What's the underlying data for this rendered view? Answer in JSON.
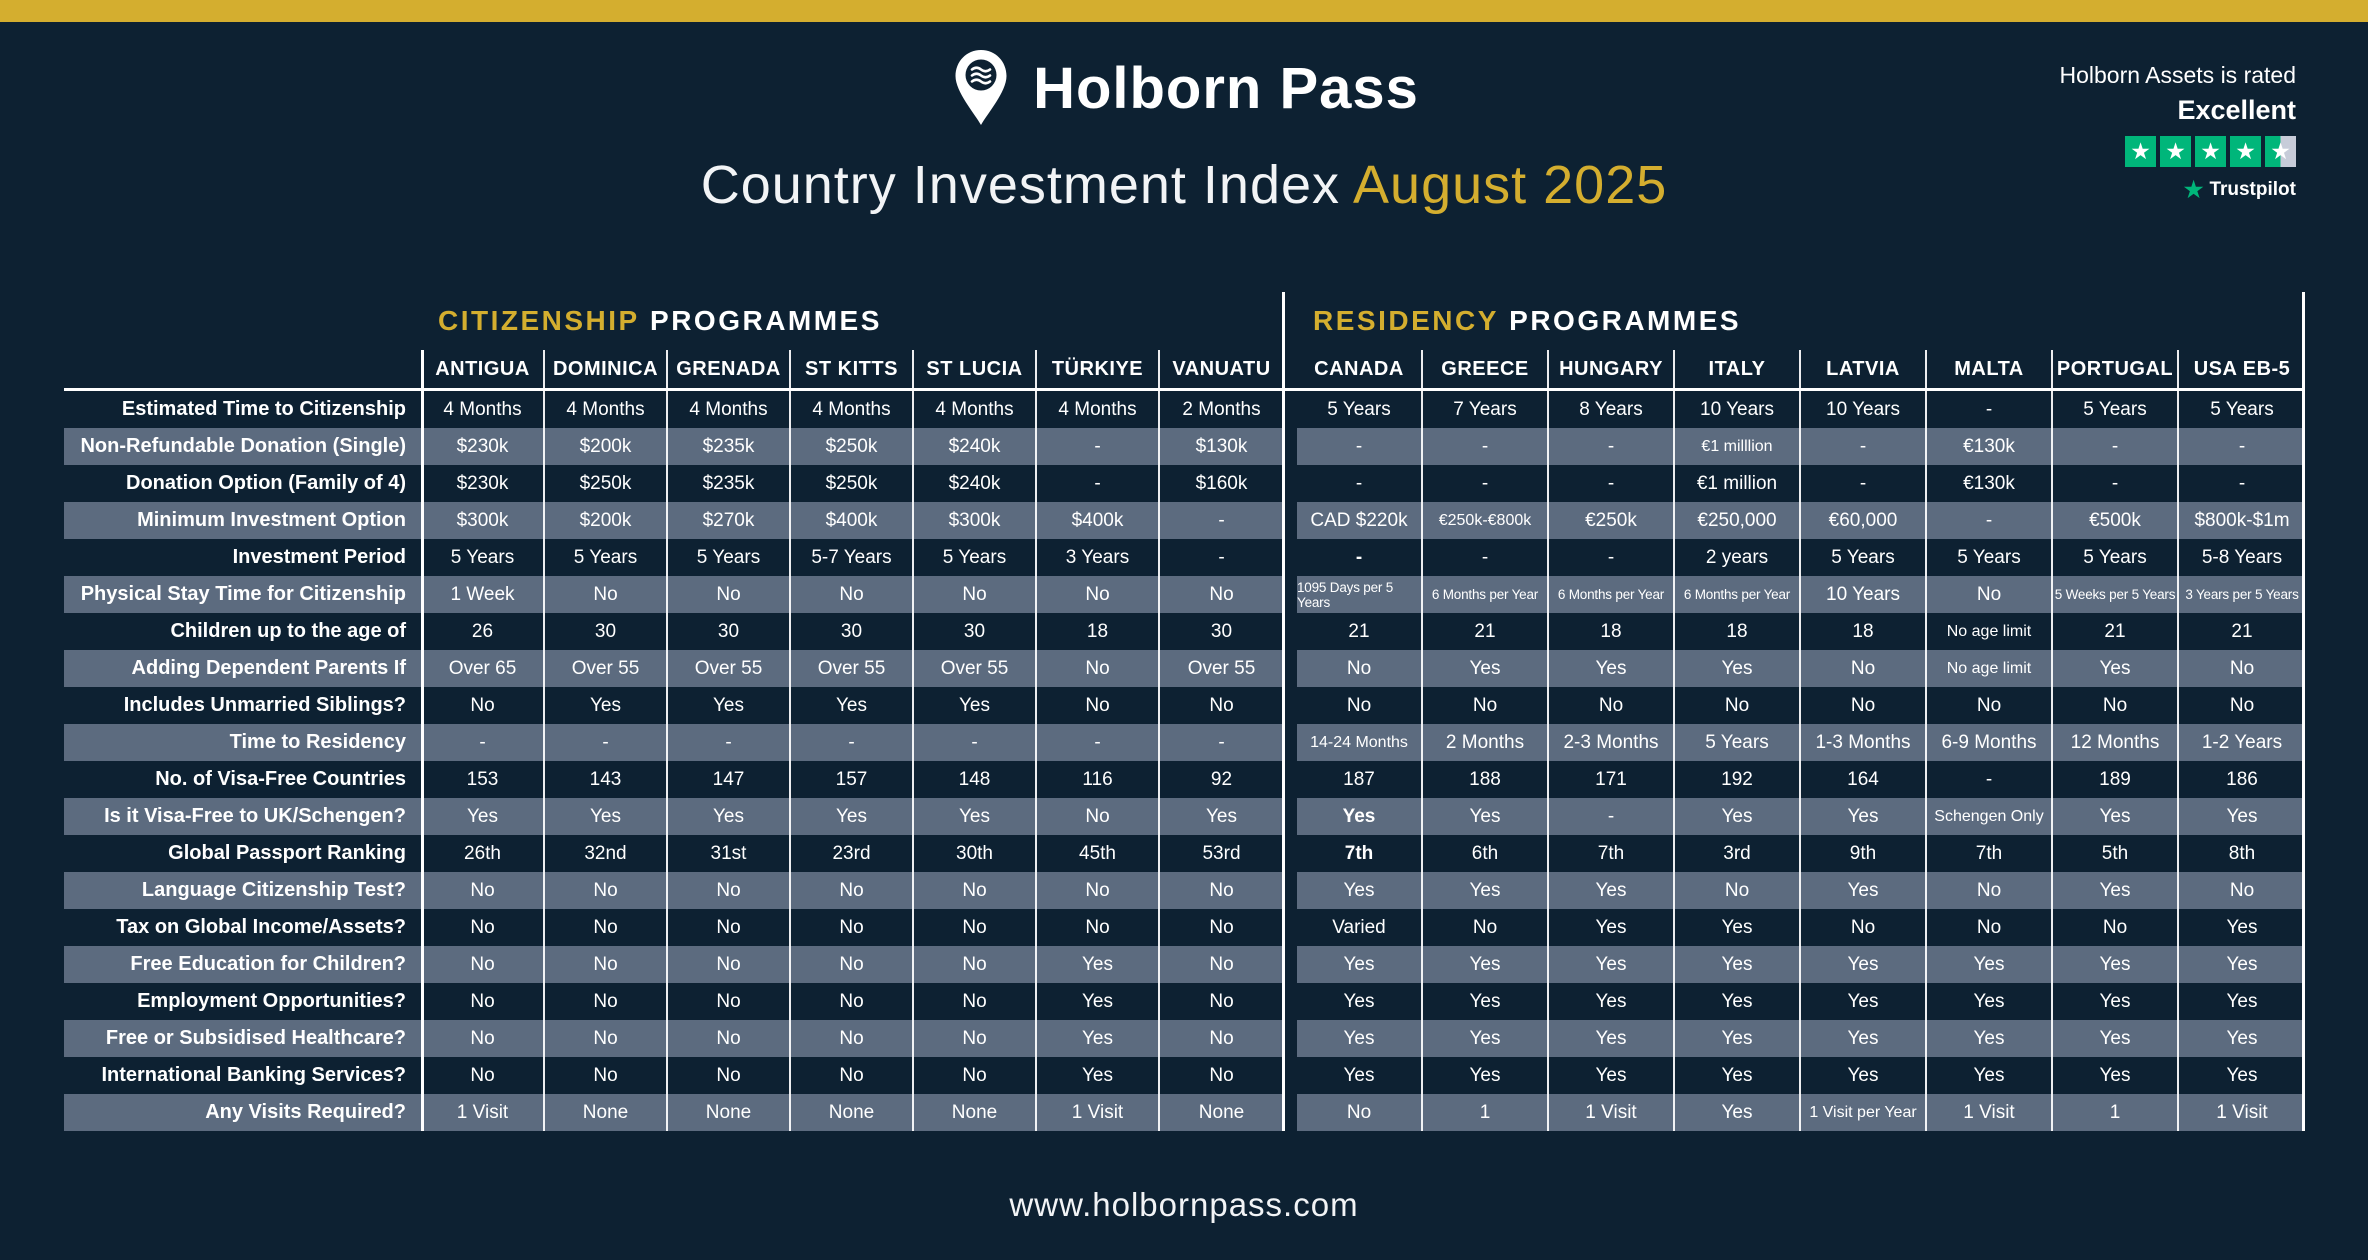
{
  "header": {
    "brand": "Holborn Pass",
    "subtitle_prefix": "Country Investment Index ",
    "subtitle_highlight": "August 2025"
  },
  "trustpilot": {
    "line1": "Holborn Assets is rated",
    "rating": "Excellent",
    "stars": 4.5,
    "brand": "Trustpilot",
    "green": "#00b67a"
  },
  "footer": {
    "url": "www.holbornpass.com"
  },
  "colors": {
    "navy": "#0d2132",
    "gold": "#d4ae2f",
    "slate": "#5c6b7f"
  },
  "chart_data": {
    "type": "table",
    "title": "Country Investment Index August 2025",
    "sections": [
      {
        "title_highlight": "CITIZENSHIP",
        "title_rest": " PROGRAMMES",
        "columns": [
          "ANTIGUA",
          "DOMINICA",
          "GRENADA",
          "ST KITTS",
          "ST LUCIA",
          "TÜRKIYE",
          "VANUATU"
        ]
      },
      {
        "title_highlight": "RESIDENCY",
        "title_rest": " PROGRAMMES",
        "columns": [
          "CANADA",
          "GREECE",
          "HUNGARY",
          "ITALY",
          "LATVIA",
          "MALTA",
          "PORTUGAL",
          "USA EB-5"
        ]
      }
    ],
    "rows": [
      {
        "label": "Estimated Time to Citizenship",
        "citizenship": [
          "4 Months",
          "4 Months",
          "4 Months",
          "4 Months",
          "4 Months",
          "4 Months",
          "2 Months"
        ],
        "residency": [
          "5 Years",
          "7 Years",
          "8 Years",
          "10 Years",
          "10 Years",
          "-",
          "5 Years",
          "5 Years"
        ]
      },
      {
        "label": "Non-Refundable Donation (Single)",
        "citizenship": [
          "$230k",
          "$200k",
          "$235k",
          "$250k",
          "$240k",
          "-",
          "$130k"
        ],
        "residency": [
          "-",
          "-",
          "-",
          "€1 milllion",
          "-",
          "€130k",
          "-",
          "-"
        ]
      },
      {
        "label": "Donation Option (Family of 4)",
        "citizenship": [
          "$230k",
          "$250k",
          "$235k",
          "$250k",
          "$240k",
          "-",
          "$160k"
        ],
        "residency": [
          "-",
          "-",
          "-",
          "€1 million",
          "-",
          "€130k",
          "-",
          "-"
        ]
      },
      {
        "label": "Minimum Investment Option",
        "citizenship": [
          "$300k",
          "$200k",
          "$270k",
          "$400k",
          "$300k",
          "$400k",
          "-"
        ],
        "residency": [
          "CAD $220k",
          "€250k-€800k",
          "€250k",
          "€250,000",
          "€60,000",
          "-",
          "€500k",
          "$800k-$1m"
        ]
      },
      {
        "label": "Investment Period",
        "citizenship": [
          "5 Years",
          "5 Years",
          "5 Years",
          "5-7 Years",
          "5 Years",
          "3 Years",
          "-"
        ],
        "residency": [
          "-",
          "-",
          "-",
          "2 years",
          "5 Years",
          "5 Years",
          "5 Years",
          "5-8 Years"
        ]
      },
      {
        "label": "Physical Stay Time for Citizenship",
        "citizenship": [
          "1 Week",
          "No",
          "No",
          "No",
          "No",
          "No",
          "No"
        ],
        "residency": [
          "1095 Days per 5 Years",
          "6 Months per Year",
          "6 Months per Year",
          "6 Months per Year",
          "10 Years",
          "No",
          "5 Weeks per 5 Years",
          "3 Years per 5 Years"
        ]
      },
      {
        "label": "Children up to the age of",
        "citizenship": [
          "26",
          "30",
          "30",
          "30",
          "30",
          "18",
          "30"
        ],
        "residency": [
          "21",
          "21",
          "18",
          "18",
          "18",
          "No age limit",
          "21",
          "21"
        ]
      },
      {
        "label": "Adding Dependent Parents If",
        "citizenship": [
          "Over 65",
          "Over 55",
          "Over 55",
          "Over 55",
          "Over 55",
          "No",
          "Over 55"
        ],
        "residency": [
          "No",
          "Yes",
          "Yes",
          "Yes",
          "No",
          "No age limit",
          "Yes",
          "No"
        ]
      },
      {
        "label": "Includes Unmarried Siblings?",
        "citizenship": [
          "No",
          "Yes",
          "Yes",
          "Yes",
          "Yes",
          "No",
          "No"
        ],
        "residency": [
          "No",
          "No",
          "No",
          "No",
          "No",
          "No",
          "No",
          "No"
        ]
      },
      {
        "label": "Time to Residency",
        "citizenship": [
          "-",
          "-",
          "-",
          "-",
          "-",
          "-",
          "-"
        ],
        "residency": [
          "14-24 Months",
          "2 Months",
          "2-3 Months",
          "5 Years",
          "1-3 Months",
          "6-9 Months",
          "12 Months",
          "1-2 Years"
        ]
      },
      {
        "label": "No. of Visa-Free Countries",
        "citizenship": [
          "153",
          "143",
          "147",
          "157",
          "148",
          "116",
          "92"
        ],
        "residency": [
          "187",
          "188",
          "171",
          "192",
          "164",
          "-",
          "189",
          "186"
        ]
      },
      {
        "label": "Is it Visa-Free to UK/Schengen?",
        "citizenship": [
          "Yes",
          "Yes",
          "Yes",
          "Yes",
          "Yes",
          "No",
          "Yes"
        ],
        "residency": [
          "Yes",
          "Yes",
          "-",
          "Yes",
          "Yes",
          "Schengen Only",
          "Yes",
          "Yes"
        ]
      },
      {
        "label": "Global Passport Ranking",
        "citizenship": [
          "26th",
          "32nd",
          "31st",
          "23rd",
          "30th",
          "45th",
          "53rd"
        ],
        "residency": [
          "7th",
          "6th",
          "7th",
          "3rd",
          "9th",
          "7th",
          "5th",
          "8th"
        ]
      },
      {
        "label": "Language Citizenship Test?",
        "citizenship": [
          "No",
          "No",
          "No",
          "No",
          "No",
          "No",
          "No"
        ],
        "residency": [
          "Yes",
          "Yes",
          "Yes",
          "No",
          "Yes",
          "No",
          "Yes",
          "No"
        ]
      },
      {
        "label": "Tax on Global Income/Assets?",
        "citizenship": [
          "No",
          "No",
          "No",
          "No",
          "No",
          "No",
          "No"
        ],
        "residency": [
          "Varied",
          "No",
          "Yes",
          "Yes",
          "No",
          "No",
          "No",
          "Yes"
        ]
      },
      {
        "label": "Free Education for Children?",
        "citizenship": [
          "No",
          "No",
          "No",
          "No",
          "No",
          "Yes",
          "No"
        ],
        "residency": [
          "Yes",
          "Yes",
          "Yes",
          "Yes",
          "Yes",
          "Yes",
          "Yes",
          "Yes"
        ]
      },
      {
        "label": "Employment Opportunities?",
        "citizenship": [
          "No",
          "No",
          "No",
          "No",
          "No",
          "Yes",
          "No"
        ],
        "residency": [
          "Yes",
          "Yes",
          "Yes",
          "Yes",
          "Yes",
          "Yes",
          "Yes",
          "Yes"
        ]
      },
      {
        "label": "Free or Subsidised Healthcare?",
        "citizenship": [
          "No",
          "No",
          "No",
          "No",
          "No",
          "Yes",
          "No"
        ],
        "residency": [
          "Yes",
          "Yes",
          "Yes",
          "Yes",
          "Yes",
          "Yes",
          "Yes",
          "Yes"
        ]
      },
      {
        "label": "International Banking Services?",
        "citizenship": [
          "No",
          "No",
          "No",
          "No",
          "No",
          "Yes",
          "No"
        ],
        "residency": [
          "Yes",
          "Yes",
          "Yes",
          "Yes",
          "Yes",
          "Yes",
          "Yes",
          "Yes"
        ]
      },
      {
        "label": "Any Visits Required?",
        "citizenship": [
          "1 Visit",
          "None",
          "None",
          "None",
          "None",
          "1 Visit",
          "None"
        ],
        "residency": [
          "No",
          "1",
          "1 Visit",
          "Yes",
          "1 Visit per Year",
          "1 Visit",
          "1",
          "1 Visit"
        ]
      }
    ],
    "bold_residency_cells": [
      [
        4,
        0
      ],
      [
        11,
        0
      ],
      [
        12,
        0
      ]
    ],
    "layout": {
      "row_striping": "alternating navy/slate starting dark",
      "grid": "white column separators"
    }
  }
}
